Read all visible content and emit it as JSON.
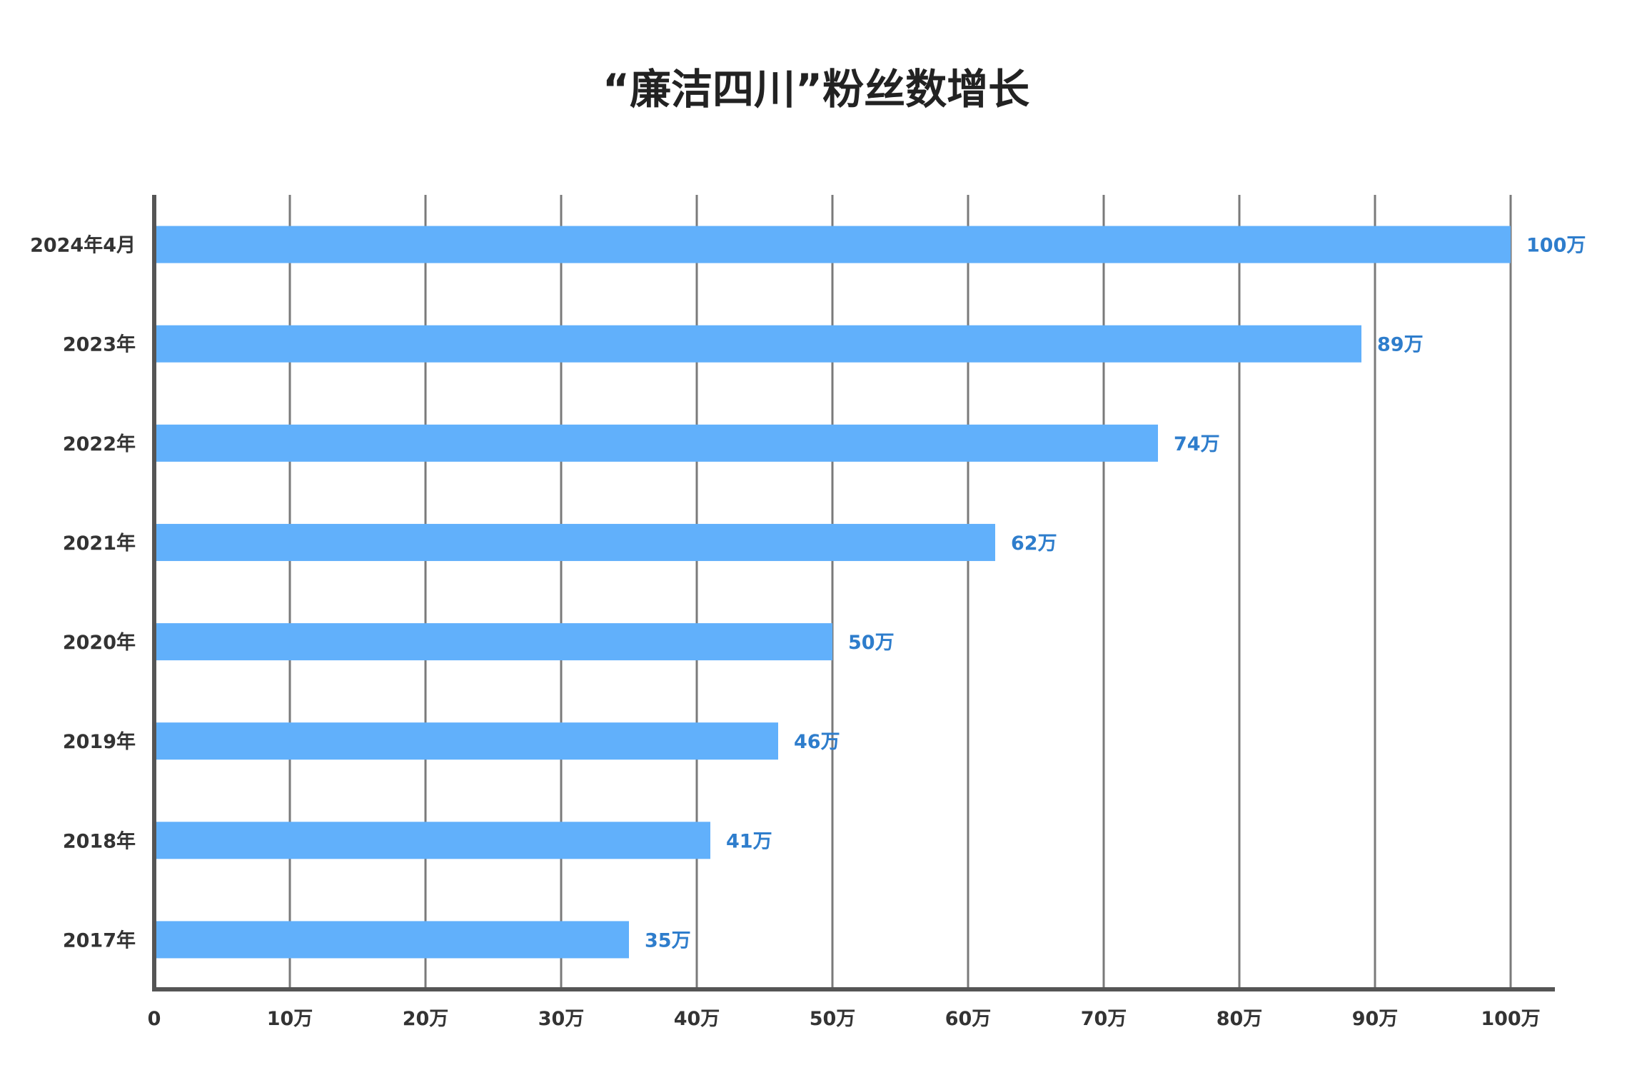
{
  "chart_data": {
    "type": "bar",
    "orientation": "horizontal",
    "title": "“廉洁四川”粉丝数增长",
    "categories": [
      "2024年4月",
      "2023年",
      "2022年",
      "2021年",
      "2020年",
      "2019年",
      "2018年",
      "2017年"
    ],
    "values": [
      100,
      89,
      74,
      62,
      50,
      46,
      41,
      35
    ],
    "data_labels": [
      "100万",
      "89万",
      "74万",
      "62万",
      "50万",
      "46万",
      "41万",
      "35万"
    ],
    "x_ticks": [
      0,
      10,
      20,
      30,
      40,
      50,
      60,
      70,
      80,
      90,
      100
    ],
    "x_tick_labels": [
      "0",
      "10万",
      "20万",
      "30万",
      "40万",
      "50万",
      "60万",
      "70万",
      "80万",
      "90万",
      "100万"
    ],
    "xlim": [
      0,
      100
    ],
    "xlabel": "",
    "ylabel": "",
    "grid": "vertical",
    "legend": "none",
    "colors": {
      "bar": "#61B0FB",
      "data_label": "#2E7DCC",
      "grid": "#7a7a7a",
      "axis": "#555555",
      "title": "#222222",
      "text": "#333333"
    }
  }
}
